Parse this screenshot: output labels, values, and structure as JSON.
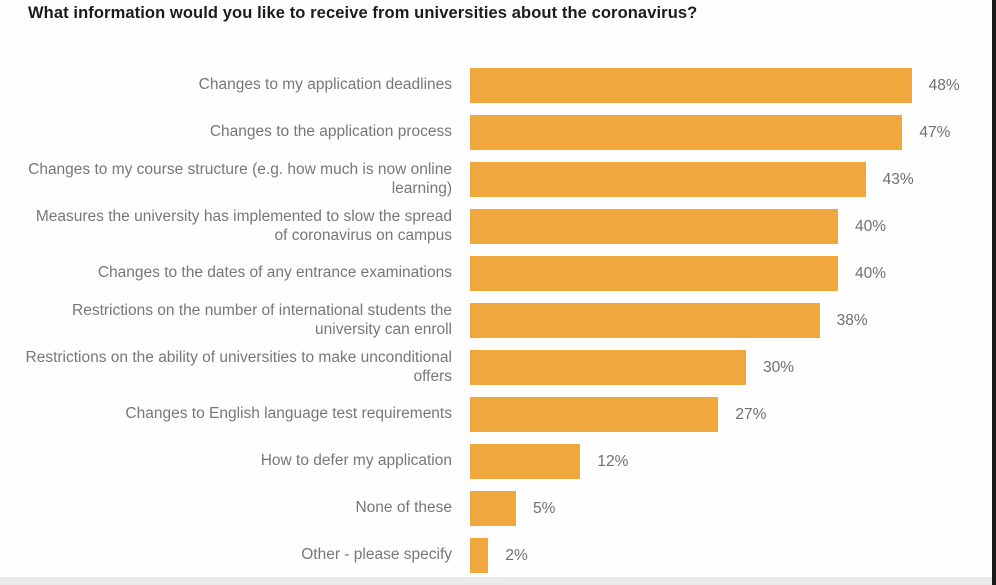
{
  "page": {
    "background_color": "#FEFEFE",
    "bottom_strip_color": "#E9E9E9",
    "right_edge_color": "#1A1A1A"
  },
  "chart_data": {
    "type": "bar",
    "orientation": "horizontal",
    "title": "What information would you like to receive from universities about the coronavirus?",
    "categories": [
      "Changes to my application deadlines",
      "Changes to the application process",
      "Changes to my course structure (e.g. how much is now online learning)",
      "Measures the university has implemented to slow the spread of coronavirus on campus",
      "Changes to the dates of any entrance examinations",
      "Restrictions on the number of international students the university can enroll",
      "Restrictions on the ability of universities to make unconditional offers",
      "Changes to English language test requirements",
      "How to defer my application",
      "None of these",
      "Other - please specify"
    ],
    "values": [
      48,
      47,
      43,
      40,
      40,
      38,
      30,
      27,
      12,
      5,
      2
    ],
    "value_labels": [
      "48%",
      "47%",
      "43%",
      "40%",
      "40%",
      "38%",
      "30%",
      "27%",
      "12%",
      "5%",
      "2%"
    ],
    "value_suffix": "%",
    "xlim": [
      0,
      50
    ],
    "grid": false,
    "legend": false,
    "value_label_position": "outside-end",
    "bar_color": "#EFA73E",
    "title_color": "#1B1B1B",
    "category_label_color": "#77777A",
    "value_label_color": "#6F6F72"
  }
}
